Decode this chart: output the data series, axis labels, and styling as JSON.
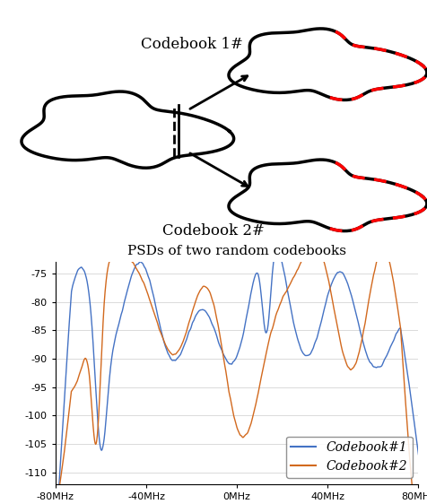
{
  "title_top": "PSDs of two random codebooks",
  "codebook1_label": "Codebook 1#",
  "codebook2_label": "Codebook 2#",
  "legend1": "Codebook#1",
  "legend2": "Codebook#2",
  "ylim": [
    -112,
    -73
  ],
  "yticks": [
    -75,
    -80,
    -85,
    -90,
    -95,
    -100,
    -105,
    -110
  ],
  "xtick_labels": [
    "-80MHz",
    "-40MHz",
    "0MHz",
    "40MHz",
    "80MHz"
  ],
  "xtick_vals": [
    -80,
    -40,
    0,
    40,
    80
  ],
  "xlim": [
    -80,
    80
  ],
  "color_blue": "#4472C4",
  "color_orange": "#D2691E",
  "line_width": 1.0,
  "fig_width": 4.76,
  "fig_height": 5.62
}
